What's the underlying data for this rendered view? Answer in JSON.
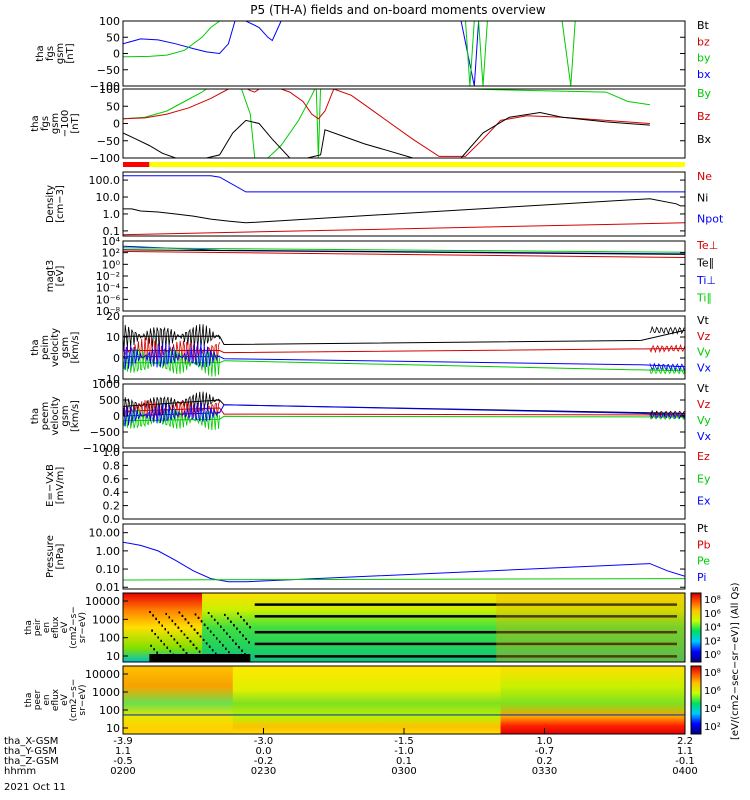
{
  "title": "P5 (TH-A) fields and on-board moments overview",
  "colors": {
    "black": "#000000",
    "red": "#d40000",
    "green": "#00cc00",
    "blue": "#0000ff",
    "panel_bg": "#ffffff",
    "status_red": "#ff0000",
    "status_yellow": "#ffff00"
  },
  "chart_data": {
    "type": "line",
    "time_axis": {
      "ticks": [
        "0200",
        "0230",
        "0300",
        "0330",
        "0400"
      ],
      "xlim": [
        "02:00",
        "04:00"
      ],
      "rows": [
        {
          "label": "tha_X-GSM",
          "values": [
            "-3.9",
            "-3.0",
            "-1.5",
            "1.0",
            "2.2"
          ]
        },
        {
          "label": "tha_Y-GSM",
          "values": [
            "1.1",
            "0.0",
            "-1.0",
            "-0.7",
            "1.1"
          ]
        },
        {
          "label": "tha_Z-GSM",
          "values": [
            "-0.5",
            "-0.2",
            "0.1",
            "0.2",
            "-0.1"
          ]
        },
        {
          "label": "hhmm",
          "values": [
            "0200",
            "0230",
            "0300",
            "0330",
            "0400"
          ]
        }
      ],
      "date": "2021 Oct 11"
    },
    "panels": [
      {
        "id": "fgs",
        "ylabel": [
          "tha",
          "fgs",
          "gsm",
          "[nT]"
        ],
        "ylim": [
          -100,
          100
        ],
        "scale": "linear",
        "yticks": [
          "100",
          "50",
          "0",
          "−50",
          "−100"
        ],
        "legend": [
          {
            "label": "Bt",
            "color": "#000000"
          },
          {
            "label": "bz",
            "color": "#d40000"
          },
          {
            "label": "by",
            "color": "#00cc00"
          },
          {
            "label": "bx",
            "color": "#0000ff"
          }
        ],
        "series": [
          {
            "name": "bx",
            "color": "#0000ff",
            "x": [
              0,
              4,
              8,
              12,
              16,
              19,
              22,
              24,
              25.5,
              28,
              31,
              33,
              34,
              36,
              44,
              46.5,
              47,
              60,
              77,
              80,
              81,
              83,
              120
            ],
            "y": [
              30,
              45,
              42,
              30,
              15,
              5,
              0,
              30,
              100,
              100,
              80,
              50,
              40,
              100,
              100,
              100,
              100,
              100,
              100,
              -100,
              100,
              100,
              100
            ]
          },
          {
            "name": "by",
            "color": "#00cc00",
            "x": [
              0,
              6,
              10,
              14,
              18,
              20,
              22,
              23.5,
              78,
              79,
              80,
              81,
              82,
              83,
              100,
              102,
              103,
              104,
              120
            ],
            "y": [
              -10,
              -9,
              -5,
              10,
              50,
              80,
              100,
              100,
              100,
              -100,
              100,
              100,
              -100,
              100,
              100,
              -100,
              100,
              100,
              100
            ]
          }
        ]
      },
      {
        "id": "fgs_zoom",
        "ylabel": [
          "tha",
          "fgs",
          "gsm",
          "−100",
          "[nT]"
        ],
        "ylim": [
          -120,
          100
        ],
        "scale": "linear",
        "yticks": [
          "100",
          "50",
          "0",
          "−50",
          "−100"
        ],
        "legend": [
          {
            "label": "By",
            "color": "#00cc00"
          },
          {
            "label": "Bz",
            "color": "#d40000"
          },
          {
            "label": "Bx",
            "color": "#000000"
          }
        ],
        "series": [
          {
            "name": "By",
            "color": "#00cc00",
            "x": [
              0,
              5,
              10,
              14,
              18,
              20,
              24,
              27,
              29,
              30,
              33,
              36,
              40,
              43,
              44,
              44.5,
              45,
              46,
              110,
              115,
              120
            ],
            "y": [
              5,
              10,
              30,
              60,
              90,
              110,
              110,
              100,
              20,
              -120,
              -120,
              -80,
              0,
              80,
              110,
              -120,
              110,
              110,
              90,
              60,
              50
            ]
          },
          {
            "name": "Bz",
            "color": "#d40000",
            "x": [
              0,
              5,
              10,
              15,
              20,
              24,
              27,
              29,
              30,
              32,
              35,
              38,
              41,
              43,
              44.5,
              46,
              48,
              52,
              56,
              60,
              66,
              72,
              78,
              82,
              86,
              92,
              100,
              110,
              120
            ],
            "y": [
              5,
              8,
              20,
              40,
              70,
              100,
              110,
              95,
              90,
              110,
              105,
              90,
              60,
              20,
              5,
              30,
              100,
              80,
              40,
              0,
              -60,
              -115,
              -115,
              -60,
              0,
              15,
              10,
              0,
              -10
            ]
          },
          {
            "name": "Bx",
            "color": "#000000",
            "x": [
              0,
              3,
              6,
              9,
              12,
              15,
              19,
              22,
              25,
              28,
              31,
              34,
              38,
              42,
              45,
              46,
              50,
              55,
              60,
              66,
              72,
              77,
              82,
              88,
              95,
              100,
              110,
              120
            ],
            "y": [
              -40,
              -60,
              -80,
              -105,
              -120,
              -120,
              -120,
              -110,
              -40,
              0,
              -10,
              -60,
              -120,
              -120,
              -110,
              -30,
              -50,
              -75,
              -95,
              -120,
              -120,
              -120,
              -40,
              10,
              25,
              10,
              -5,
              -15
            ]
          }
        ]
      },
      {
        "id": "density",
        "ylabel": [
          "Density",
          "[cm−3]"
        ],
        "ylim": [
          0.05,
          300
        ],
        "scale": "log",
        "yticks": [
          "100.0",
          "10.0",
          "1.0",
          "0.1"
        ],
        "legend": [
          {
            "label": "Ne",
            "color": "#d40000"
          },
          {
            "label": "Ni",
            "color": "#000000"
          },
          {
            "label": "Npot",
            "color": "#0000ff"
          }
        ],
        "series": [
          {
            "name": "Ni",
            "color": "#000000",
            "x": [
              0,
              2,
              4,
              8,
              12,
              16,
              20,
              24,
              28,
              120,
              126,
              127,
              128
            ],
            "y": [
              2.0,
              2.0,
              1.5,
              1.3,
              1.0,
              0.75,
              0.5,
              0.38,
              0.3,
              8.0,
              4.0,
              3.0,
              3.0
            ]
          },
          {
            "name": "Npot",
            "color": "#0000ff",
            "x": [
              0,
              20,
              22,
              28,
              128
            ],
            "y": [
              180,
              180,
              150,
              20,
              20
            ]
          },
          {
            "name": "Ne",
            "color": "#d40000",
            "x": [
              0,
              128
            ],
            "y": [
              0.06,
              0.3
            ]
          }
        ]
      },
      {
        "id": "temperature",
        "ylabel": [
          "magt3",
          "[eV]"
        ],
        "ylim": [
          1e-09,
          30000.0
        ],
        "scale": "log",
        "yticks": [
          "10⁴",
          "10²",
          "10⁰",
          "10⁻²",
          "10⁻⁴",
          "10⁻⁶",
          "10⁻⁸"
        ],
        "legend": [
          {
            "label": "Te⊥",
            "color": "#d40000"
          },
          {
            "label": "Te∥",
            "color": "#000000"
          },
          {
            "label": "Ti⊥",
            "color": "#0000ff"
          },
          {
            "label": "Ti∥",
            "color": "#00cc00"
          }
        ],
        "series": [
          {
            "name": "Ti⊥",
            "color": "#0000ff",
            "x": [
              0,
              22,
              128
            ],
            "y": [
              3000,
              500,
              100
            ]
          },
          {
            "name": "Te∥",
            "color": "#000000",
            "x": [
              0,
              128
            ],
            "y": [
              600,
              80
            ]
          },
          {
            "name": "Te⊥",
            "color": "#d40000",
            "x": [
              0,
              128
            ],
            "y": [
              300,
              20
            ]
          },
          {
            "name": "Ti∥",
            "color": "#00cc00",
            "x": [
              0,
              128
            ],
            "y": [
              1500,
              200
            ]
          }
        ]
      },
      {
        "id": "peim",
        "ylabel": [
          "tha",
          "peim",
          "velocity",
          "gsm",
          "[km/s]"
        ],
        "ylim": [
          -11,
          20
        ],
        "scale": "linear",
        "yticks": [
          "20",
          "10",
          "0",
          "−10"
        ],
        "legend": [
          {
            "label": "Vt",
            "color": "#000000"
          },
          {
            "label": "Vz",
            "color": "#d40000"
          },
          {
            "label": "Vy",
            "color": "#00cc00"
          },
          {
            "label": "Vx",
            "color": "#0000ff"
          }
        ],
        "series": [
          {
            "name": "Vt",
            "color": "#000000",
            "x": [
              0,
              22,
              23,
              118,
              120,
              128
            ],
            "y": [
              10,
              10,
              6,
              8,
              9,
              13
            ]
          },
          {
            "name": "Vz",
            "color": "#d40000",
            "x": [
              0,
              22,
              23,
              128
            ],
            "y": [
              3,
              3,
              2,
              4
            ]
          },
          {
            "name": "Vy",
            "color": "#00cc00",
            "x": [
              0,
              22,
              23,
              128
            ],
            "y": [
              -3,
              -3,
              -2,
              -7
            ]
          },
          {
            "name": "Vx",
            "color": "#0000ff",
            "x": [
              0,
              22,
              23,
              118,
              128
            ],
            "y": [
              0,
              0,
              -1,
              -4,
              -5
            ]
          }
        ]
      },
      {
        "id": "peem",
        "ylabel": [
          "tha",
          "peem",
          "velocity",
          "gsm",
          "[km/s]"
        ],
        "ylim": [
          -1000,
          1000
        ],
        "scale": "linear",
        "yticks": [
          "1000",
          "500",
          "0",
          "−500",
          "−1000"
        ],
        "legend": [
          {
            "label": "Vt",
            "color": "#000000"
          },
          {
            "label": "Vz",
            "color": "#d40000"
          },
          {
            "label": "Vy",
            "color": "#00cc00"
          },
          {
            "label": "Vx",
            "color": "#0000ff"
          }
        ],
        "series": [
          {
            "name": "Vt",
            "color": "#000000",
            "x": [
              0,
              22,
              23,
              128
            ],
            "y": [
              300,
              500,
              350,
              80
            ]
          },
          {
            "name": "Vz",
            "color": "#d40000",
            "x": [
              0,
              22,
              23,
              128
            ],
            "y": [
              150,
              250,
              60,
              30
            ]
          },
          {
            "name": "Vy",
            "color": "#00cc00",
            "x": [
              0,
              22,
              23,
              128
            ],
            "y": [
              -150,
              -100,
              -10,
              -30
            ]
          },
          {
            "name": "Vx",
            "color": "#0000ff",
            "x": [
              0,
              22,
              23,
              118,
              128
            ],
            "y": [
              0,
              100,
              350,
              80,
              20
            ]
          }
        ]
      },
      {
        "id": "efield",
        "ylabel": [
          "E=−VxB",
          "[mV/m]"
        ],
        "ylim": [
          0,
          1
        ],
        "scale": "linear",
        "yticks": [
          "1.0",
          "0.8",
          "0.6",
          "0.4",
          "0.2",
          "0.0"
        ],
        "legend": [
          {
            "label": "Ez",
            "color": "#d40000"
          },
          {
            "label": "Ey",
            "color": "#00cc00"
          },
          {
            "label": "Ex",
            "color": "#0000ff"
          }
        ],
        "series": []
      },
      {
        "id": "pressure",
        "ylabel": [
          "Pressure",
          "[nPa]"
        ],
        "ylim": [
          0.008,
          30
        ],
        "scale": "log",
        "yticks": [
          "10.00",
          "1.00",
          "0.10",
          "0.01"
        ],
        "legend": [
          {
            "label": "Pt",
            "color": "#000000"
          },
          {
            "label": "Pb",
            "color": "#d40000"
          },
          {
            "label": "Pe",
            "color": "#00cc00"
          },
          {
            "label": "Pi",
            "color": "#0000ff"
          }
        ],
        "series": [
          {
            "name": "Pi",
            "color": "#0000ff",
            "x": [
              0,
              4,
              8,
              12,
              16,
              20,
              24,
              28,
              120,
              124,
              128
            ],
            "y": [
              3.0,
              2.0,
              1.0,
              0.3,
              0.08,
              0.03,
              0.02,
              0.02,
              0.2,
              0.08,
              0.04
            ]
          },
          {
            "name": "Pe",
            "color": "#00cc00",
            "x": [
              0,
              128
            ],
            "y": [
              0.025,
              0.03
            ]
          }
        ]
      }
    ],
    "spectrograms": [
      {
        "id": "peir",
        "ylabel": [
          "tha",
          "peir",
          "en",
          "eflux",
          "eV",
          "(cm2−s−",
          "sr−eV)"
        ],
        "yticks": [
          "10000",
          "1000",
          "100",
          "10"
        ],
        "colorbar": {
          "ticks": [
            "10⁸",
            "10⁶",
            "10⁴",
            "10²",
            "10⁰"
          ],
          "label": "[eV/(cm2−sec−sr−eV)] (All Qs)"
        }
      },
      {
        "id": "peer",
        "ylabel": [
          "tha",
          "peer",
          "en",
          "eflux",
          "eV",
          "(cm2−s−",
          "sr−eV)"
        ],
        "yticks": [
          "10000",
          "1000",
          "100",
          "10"
        ],
        "colorbar": {
          "ticks": [
            "10⁸",
            "10⁶",
            "10⁴",
            "10²"
          ],
          "label": "[eV/(cm2−sec−sr−eV)]"
        }
      }
    ],
    "status_bar": {
      "segments": [
        {
          "from": 0,
          "to": 6,
          "color": "#ff0000"
        },
        {
          "from": 6,
          "to": 128,
          "color": "#ffff00"
        }
      ]
    }
  }
}
